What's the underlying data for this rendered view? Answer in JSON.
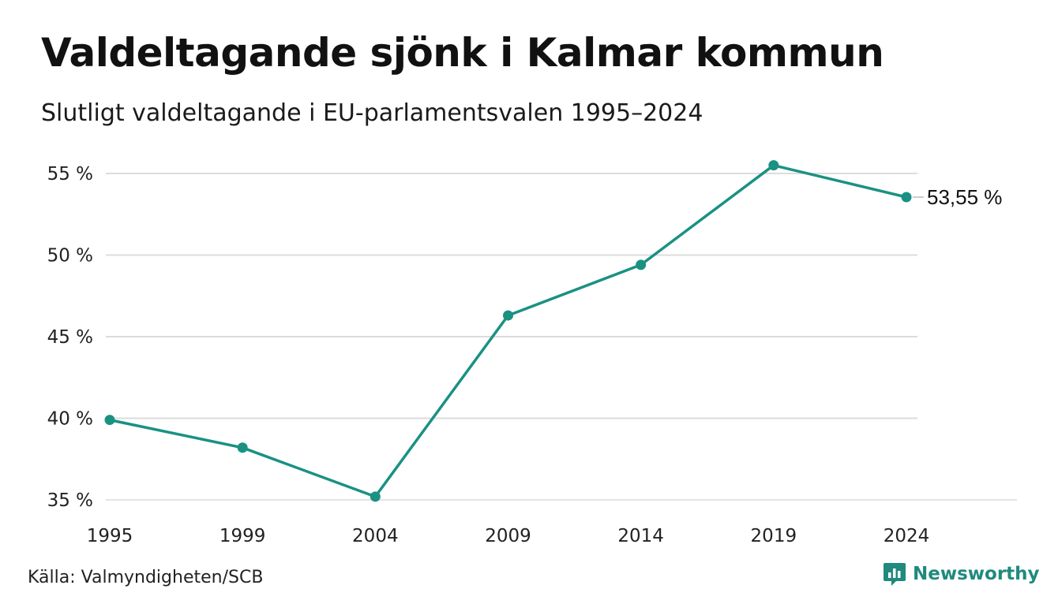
{
  "header": {
    "title": "Valdeltagande sjönk i Kalmar kommun",
    "subtitle": "Slutligt valdeltagande i EU-parlamentsvalen 1995–2024"
  },
  "footer": {
    "source": "Källa: Valmyndigheten/SCB",
    "brand": "Newsworthy"
  },
  "colors": {
    "line": "#1a9183",
    "grid": "#dcdcdc",
    "brand": "#1f8a7d"
  },
  "chart_data": {
    "type": "line",
    "title": "Valdeltagande sjönk i Kalmar kommun",
    "subtitle": "Slutligt valdeltagande i EU-parlamentsvalen 1995–2024",
    "xlabel": "",
    "ylabel": "",
    "categories": [
      "1995",
      "1999",
      "2004",
      "2009",
      "2014",
      "2019",
      "2024"
    ],
    "series": [
      {
        "values": [
          39.9,
          38.2,
          35.2,
          46.3,
          49.4,
          55.5,
          53.55
        ]
      }
    ],
    "ylim": [
      35,
      55
    ],
    "yticks": [
      35,
      40,
      45,
      50,
      55
    ],
    "ytick_labels": [
      "35 %",
      "40 %",
      "45 %",
      "50 %",
      "55 %"
    ],
    "end_label": "53,55 %",
    "grid": true,
    "legend": "none"
  }
}
